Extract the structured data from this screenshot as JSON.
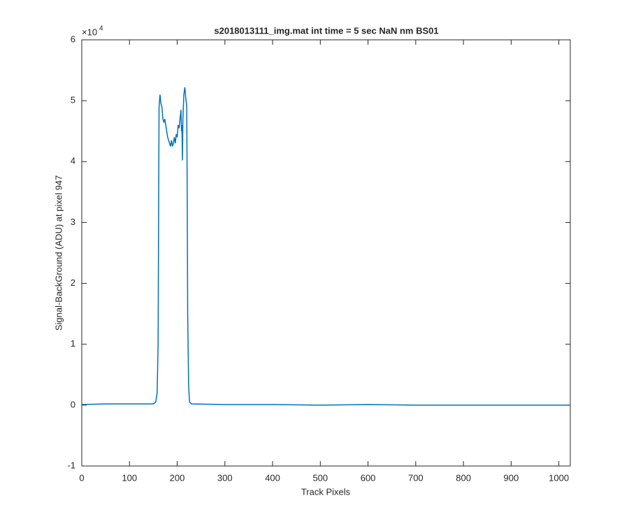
{
  "chart_data": {
    "type": "line",
    "title": "s2018013111_img.mat int time = 5 sec  NaN nm BS01",
    "x_label": "Track Pixels",
    "y_label": "Signal-BackGround (ADU) at pixel 947",
    "y_scale_label": {
      "base": "×10",
      "power": "4"
    },
    "xlim": [
      0,
      1024
    ],
    "xticks": [
      0,
      100,
      200,
      300,
      400,
      500,
      600,
      700,
      800,
      900,
      1000
    ],
    "ylim": [
      -1,
      6
    ],
    "yticks": [
      -1,
      0,
      1,
      2,
      3,
      4,
      5,
      6
    ],
    "series": [
      {
        "color": "#0072bd",
        "x": [
          0,
          50,
          100,
          150,
          155,
          158,
          160,
          161,
          162,
          164,
          166,
          168,
          170,
          172,
          174,
          176,
          178,
          180,
          182,
          184,
          186,
          188,
          190,
          192,
          194,
          196,
          198,
          200,
          202,
          204,
          206,
          208,
          209,
          210,
          211,
          212,
          214,
          216,
          218,
          220,
          221,
          222,
          224,
          226,
          230,
          300,
          400,
          500,
          600,
          700,
          800,
          900,
          1000,
          1024
        ],
        "values": [
          0.01,
          0.02,
          0.02,
          0.02,
          0.05,
          0.2,
          1.0,
          3.0,
          4.9,
          5.1,
          4.95,
          4.9,
          4.7,
          4.65,
          4.7,
          4.6,
          4.5,
          4.4,
          4.35,
          4.3,
          4.25,
          4.35,
          4.25,
          4.3,
          4.4,
          4.3,
          4.45,
          4.4,
          4.6,
          4.55,
          4.7,
          4.85,
          4.5,
          4.6,
          4.02,
          4.7,
          5.1,
          5.22,
          5.05,
          4.9,
          3.5,
          1.5,
          0.3,
          0.05,
          0.02,
          0.01,
          0.01,
          0.0,
          0.01,
          0.0,
          0.0,
          0.0,
          0.0,
          0.0
        ]
      }
    ]
  }
}
